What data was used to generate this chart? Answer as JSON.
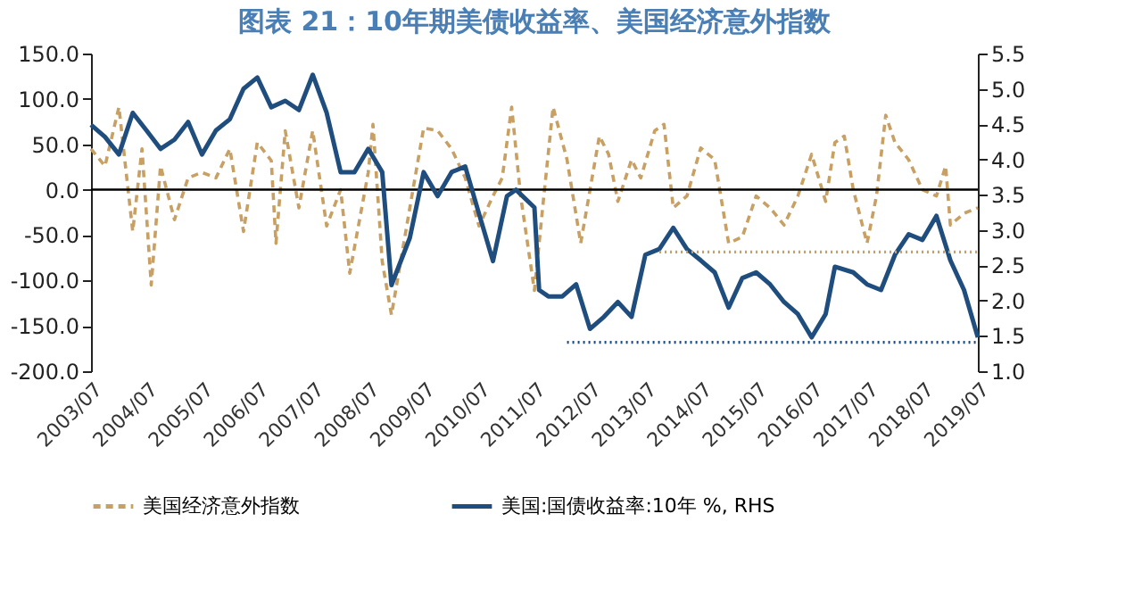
{
  "chart_data": {
    "type": "line",
    "title": "图表 21：10年期美债收益率、美国经济意外指数",
    "xlim": [
      "2003-07",
      "2019-07"
    ],
    "xticks": [
      {
        "value": "2003-07",
        "label": "2003/07"
      },
      {
        "value": "2004-07",
        "label": "2004/07"
      },
      {
        "value": "2005-07",
        "label": "2005/07"
      },
      {
        "value": "2006-07",
        "label": "2006/07"
      },
      {
        "value": "2007-07",
        "label": "2007/07"
      },
      {
        "value": "2008-07",
        "label": "2008/07"
      },
      {
        "value": "2009-07",
        "label": "2009/07"
      },
      {
        "value": "2010-07",
        "label": "2010/07"
      },
      {
        "value": "2011-07",
        "label": "2011/07"
      },
      {
        "value": "2012-07",
        "label": "2012/07"
      },
      {
        "value": "2013-07",
        "label": "2013/07"
      },
      {
        "value": "2014-07",
        "label": "2014/07"
      },
      {
        "value": "2015-07",
        "label": "2015/07"
      },
      {
        "value": "2016-07",
        "label": "2016/07"
      },
      {
        "value": "2017-07",
        "label": "2017/07"
      },
      {
        "value": "2018-07",
        "label": "2018/07"
      },
      {
        "value": "2019-07",
        "label": "2019/07"
      }
    ],
    "ylim": [
      -200,
      150
    ],
    "yticks": [
      {
        "value": -200,
        "label": "-200.0"
      },
      {
        "value": -150,
        "label": "-150.0"
      },
      {
        "value": -100,
        "label": "-100.0"
      },
      {
        "value": -50,
        "label": "-50.0"
      },
      {
        "value": 0,
        "label": "0.0"
      },
      {
        "value": 50,
        "label": "50.0"
      },
      {
        "value": 100,
        "label": "100.0"
      },
      {
        "value": 150,
        "label": "150.0"
      }
    ],
    "y2lim": [
      1.0,
      5.5
    ],
    "y2ticks": [
      {
        "value": 1,
        "label": "1.0"
      },
      {
        "value": 1.5,
        "label": "1.5"
      },
      {
        "value": 2,
        "label": "2.0"
      },
      {
        "value": 2.5,
        "label": "2.5"
      },
      {
        "value": 3,
        "label": "3.0"
      },
      {
        "value": 3.5,
        "label": "3.5"
      },
      {
        "value": 4,
        "label": "4.0"
      },
      {
        "value": 4.5,
        "label": "4.5"
      },
      {
        "value": 5,
        "label": "5.0"
      },
      {
        "value": 5.5,
        "label": "5.5"
      }
    ],
    "grid": false,
    "legend": "bottom",
    "ref_lines": [
      {
        "axis": "y",
        "value": 0,
        "color": "#000000"
      }
    ],
    "series": [
      {
        "name": "美国经济意外指数",
        "color": "#c9a063",
        "line_style": "dashed",
        "x": [
          "2003-07",
          "2003-10",
          "2004-01",
          "2004-04",
          "2004-06",
          "2004-08",
          "2004-10",
          "2005-01",
          "2005-04",
          "2005-07",
          "2005-10",
          "2006-01",
          "2006-04",
          "2006-07",
          "2006-10",
          "2006-11",
          "2007-01",
          "2007-04",
          "2007-07",
          "2007-10",
          "2008-01",
          "2008-03",
          "2008-07",
          "2008-08",
          "2008-10",
          "2008-12",
          "2009-04",
          "2009-07",
          "2009-10",
          "2010-01",
          "2010-04",
          "2010-07",
          "2010-10",
          "2010-12",
          "2011-02",
          "2011-04",
          "2011-07",
          "2011-09",
          "2011-11",
          "2012-02",
          "2012-05",
          "2012-09",
          "2012-11",
          "2013-01",
          "2013-04",
          "2013-06",
          "2013-09",
          "2013-11",
          "2014-01",
          "2014-04",
          "2014-07",
          "2014-10",
          "2015-01",
          "2015-04",
          "2015-07",
          "2015-10",
          "2016-01",
          "2016-04",
          "2016-07",
          "2016-10",
          "2016-12",
          "2017-02",
          "2017-04",
          "2017-07",
          "2017-09",
          "2017-11",
          "2018-01",
          "2018-04",
          "2018-07",
          "2018-10",
          "2018-12",
          "2019-01",
          "2019-04",
          "2019-07"
        ],
        "values": [
          45,
          26,
          91,
          -46,
          45,
          -105,
          26,
          -33,
          13,
          19,
          13,
          45,
          -46,
          52,
          32,
          -59,
          65,
          -20,
          65,
          -40,
          0,
          -92,
          19,
          72,
          -79,
          -138,
          -20,
          68,
          65,
          45,
          13,
          -40,
          -7,
          13,
          91,
          -7,
          -111,
          -7,
          91,
          33,
          -59,
          59,
          39,
          -13,
          33,
          13,
          65,
          72,
          -20,
          -7,
          46,
          33,
          -59,
          -52,
          -7,
          -20,
          -39,
          -7,
          39,
          -13,
          52,
          59,
          0,
          -59,
          -7,
          82,
          52,
          33,
          0,
          -7,
          26,
          -39,
          -26,
          -20
        ]
      },
      {
        "name": "美国:国债收益率:10年 %, RHS",
        "color": "#1f4e7e",
        "line_style": "solid",
        "axis": "y2",
        "x": [
          "2003-07",
          "2003-10",
          "2004-01",
          "2004-04",
          "2004-07",
          "2004-10",
          "2005-01",
          "2005-04",
          "2005-07",
          "2005-10",
          "2006-01",
          "2006-04",
          "2006-07",
          "2006-10",
          "2007-01",
          "2007-04",
          "2007-07",
          "2007-10",
          "2008-01",
          "2008-04",
          "2008-07",
          "2008-10",
          "2008-12",
          "2009-04",
          "2009-07",
          "2009-10",
          "2010-01",
          "2010-04",
          "2010-07",
          "2010-10",
          "2011-01",
          "2011-03",
          "2011-07",
          "2011-08",
          "2011-10",
          "2012-01",
          "2012-04",
          "2012-07",
          "2012-10",
          "2013-01",
          "2013-04",
          "2013-07",
          "2013-10",
          "2014-01",
          "2014-04",
          "2014-07",
          "2014-10",
          "2015-01",
          "2015-04",
          "2015-07",
          "2015-10",
          "2016-01",
          "2016-04",
          "2016-07",
          "2016-10",
          "2016-12",
          "2017-04",
          "2017-07",
          "2017-10",
          "2018-01",
          "2018-04",
          "2018-07",
          "2018-10",
          "2019-01",
          "2019-04",
          "2019-07"
        ],
        "values": [
          4.49,
          4.32,
          4.07,
          4.66,
          4.41,
          4.15,
          4.28,
          4.53,
          4.07,
          4.41,
          4.57,
          5.0,
          5.16,
          4.74,
          4.83,
          4.7,
          5.2,
          4.66,
          3.82,
          3.82,
          4.15,
          3.82,
          2.22,
          2.89,
          3.82,
          3.48,
          3.82,
          3.9,
          3.23,
          2.56,
          3.48,
          3.57,
          3.32,
          2.15,
          2.06,
          2.06,
          2.23,
          1.6,
          1.77,
          1.98,
          1.77,
          2.65,
          2.73,
          3.03,
          2.73,
          2.57,
          2.4,
          1.9,
          2.32,
          2.4,
          2.23,
          1.98,
          1.81,
          1.48,
          1.81,
          2.48,
          2.4,
          2.23,
          2.15,
          2.65,
          2.94,
          2.86,
          3.2,
          2.57,
          2.15,
          1.48
        ]
      },
      {
        "color": "#c9a063",
        "line_style": "dotted",
        "axis": "y2",
        "x": [
          "2013-10",
          "2019-07"
        ],
        "values": [
          2.69,
          2.69
        ]
      },
      {
        "color": "#1f4e7e",
        "line_style": "dotted",
        "axis": "y2",
        "x": [
          "2012-02",
          "2019-07"
        ],
        "values": [
          1.41,
          1.41
        ]
      }
    ]
  }
}
